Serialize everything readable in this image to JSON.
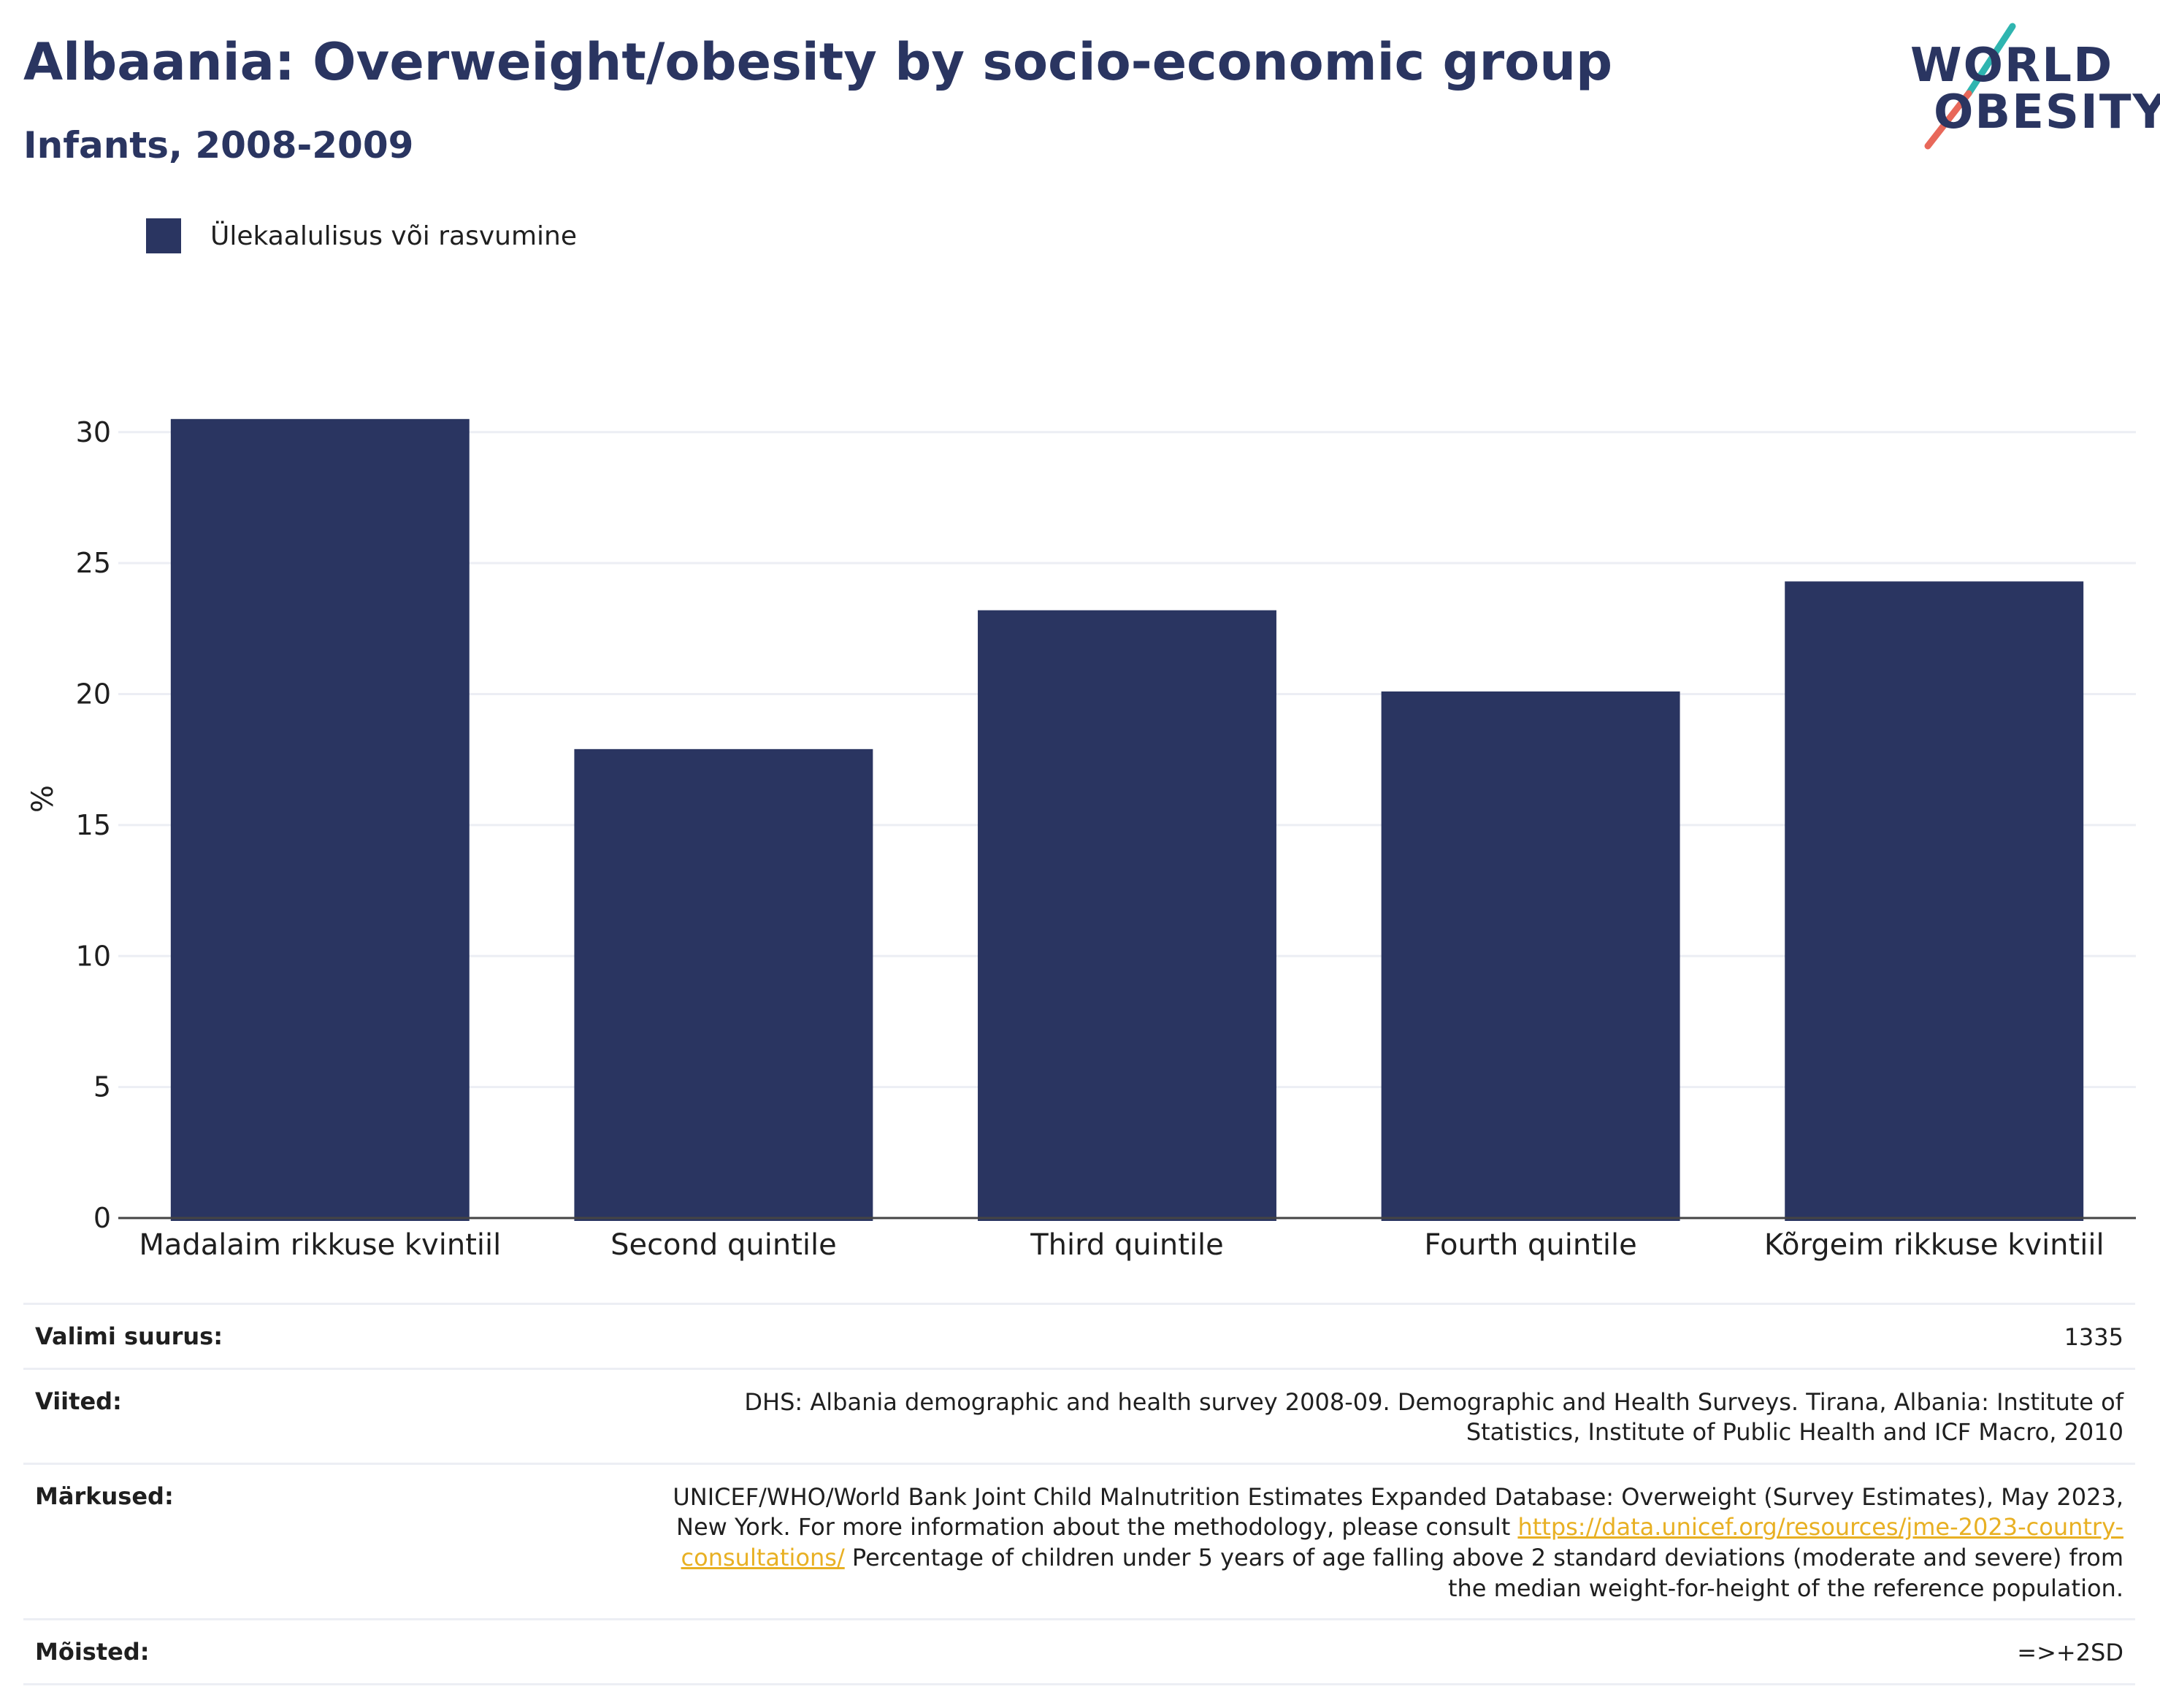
{
  "header": {
    "title": "Albaania: Overweight/obesity by socio-economic group",
    "subtitle": "Infants, 2008-2009"
  },
  "logo": {
    "line1": "WORLD",
    "line2": "OBESITY"
  },
  "legend": {
    "label": "Ülekaalulisus või rasvumine",
    "color": "#2a3561"
  },
  "chart_data": {
    "type": "bar",
    "categories": [
      "Madalaim rikkuse kvintiil",
      "Second quintile",
      "Third quintile",
      "Fourth quintile",
      "Kõrgeim rikkuse kvintiil"
    ],
    "series": [
      {
        "name": "Ülekaalulisus või rasvumine",
        "values": [
          30.5,
          17.9,
          23.2,
          20.1,
          24.3
        ],
        "color": "#2a3561"
      }
    ],
    "ylabel": "%",
    "ylim": [
      0,
      32
    ],
    "yticks": [
      0,
      5,
      10,
      15,
      20,
      25,
      30
    ],
    "grid": true
  },
  "info": {
    "sample_size": {
      "label": "Valimi suurus:",
      "value": "1335"
    },
    "references": {
      "label": "Viited:",
      "value": "DHS: Albania demographic and health survey 2008-09. Demographic and Health Surveys. Tirana, Albania: Institute of Statistics, Institute of Public Health and ICF Macro, 2010"
    },
    "notes": {
      "label": "Märkused:",
      "text_before": "UNICEF/WHO/World Bank Joint Child Malnutrition Estimates Expanded Database: Overweight (Survey Estimates), May 2023, New York. For more information about the methodology, please consult ",
      "link": "https://data.unicef.org/resources/jme-2023-country-consultations/",
      "text_after": " Percentage of children under 5 years of age falling above 2 standard deviations (moderate and severe) from the median weight-for-height of the reference population."
    },
    "definitions": {
      "label": "Mõisted:",
      "value": "=>+2SD"
    }
  }
}
